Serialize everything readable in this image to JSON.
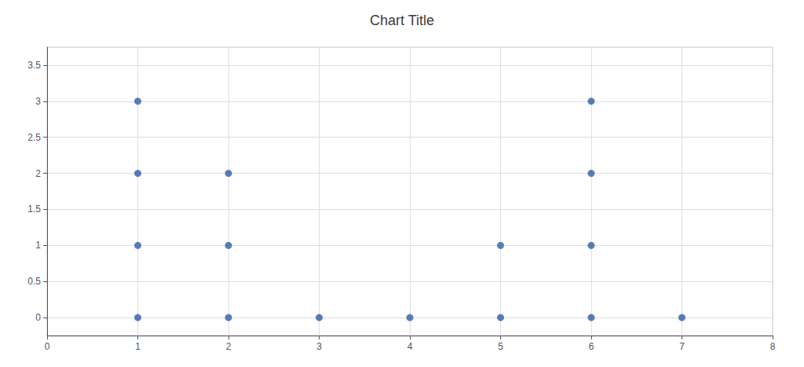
{
  "chart_data": {
    "type": "scatter",
    "title": "Chart Title",
    "x": [
      1,
      1,
      1,
      1,
      2,
      2,
      2,
      3,
      4,
      5,
      5,
      6,
      6,
      6,
      6,
      7
    ],
    "values": [
      3,
      2,
      1,
      0,
      2,
      1,
      0,
      0,
      0,
      1,
      0,
      3,
      2,
      1,
      0,
      0
    ],
    "color": "#2E5EA8",
    "xlim": [
      0,
      8
    ],
    "ylim": [
      -0.25,
      3.75
    ],
    "xticks": [
      0,
      1,
      2,
      3,
      4,
      5,
      6,
      7,
      8
    ],
    "yticks": [
      0,
      0.5,
      1,
      1.5,
      2,
      2.5,
      3,
      3.5
    ],
    "grid": true
  }
}
